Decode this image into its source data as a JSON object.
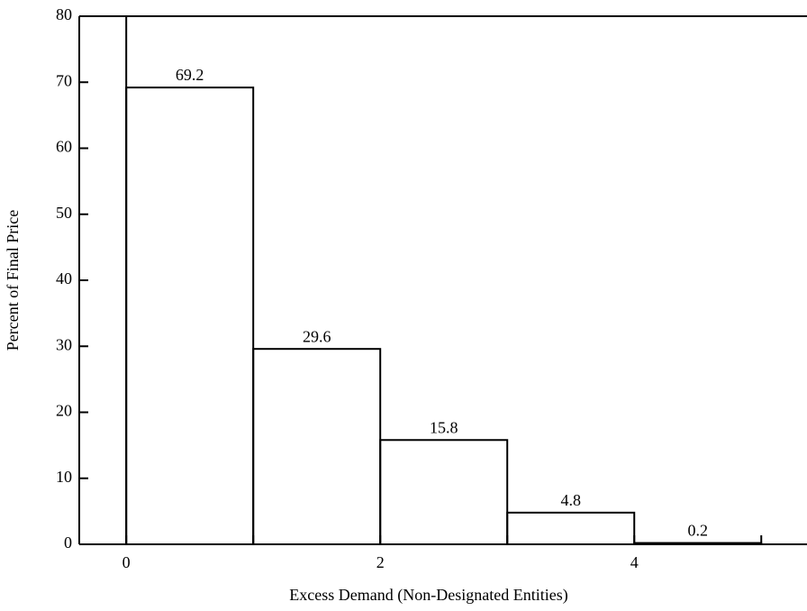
{
  "chart_data": {
    "type": "histogram",
    "x_label": "Excess Demand (Non-Designated Entities)",
    "y_label": "Percent of Final Price",
    "bins": [
      0,
      1,
      2,
      3,
      4,
      5
    ],
    "values": [
      69.2,
      29.6,
      15.8,
      4.8,
      0.2
    ],
    "color": "#000000",
    "xlim": [
      -0.37,
      5.36
    ],
    "ylim": [
      0,
      80
    ],
    "xticks": [
      0,
      2,
      4
    ],
    "xminorticks": [
      1,
      3,
      5
    ],
    "yticks": [
      0,
      10,
      20,
      30,
      40,
      50,
      60,
      70,
      80
    ]
  }
}
